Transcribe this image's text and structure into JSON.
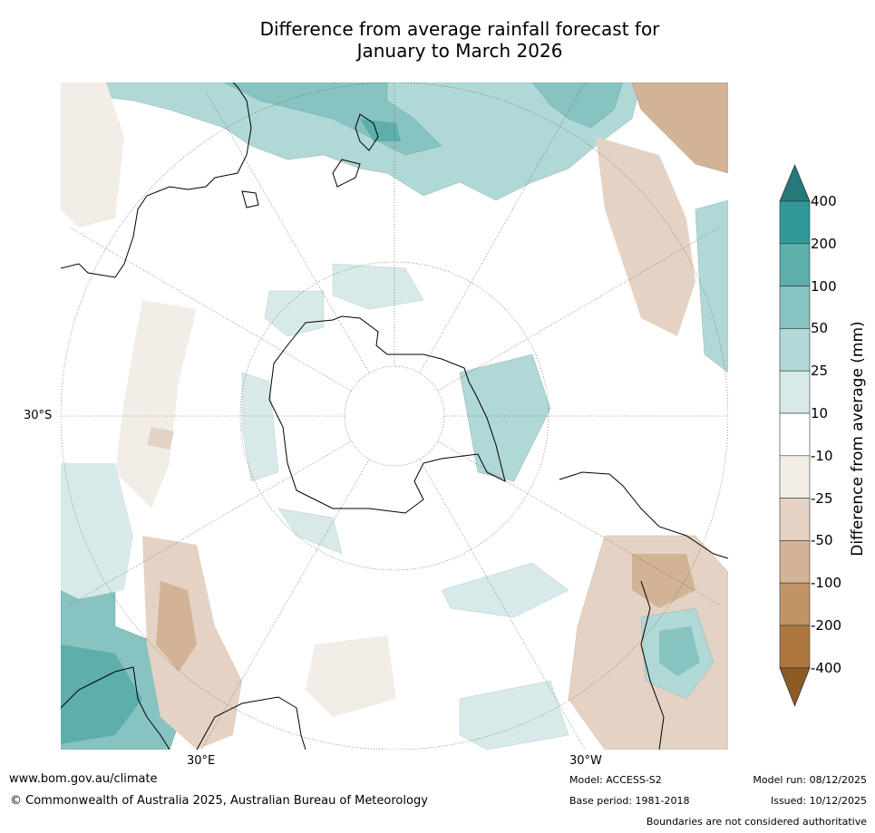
{
  "title": {
    "line1": "Difference from average rainfall forecast for",
    "line2": "January to March 2026"
  },
  "map": {
    "projection": "South polar stereographic",
    "lat_label_30s": "30°S",
    "lon_label_30e": "30°E",
    "lon_label_30w": "30°W"
  },
  "colorbar": {
    "title": "Difference from average (mm)",
    "ticks": [
      "400",
      "200",
      "100",
      "50",
      "25",
      "10",
      "-10",
      "-25",
      "-50",
      "-100",
      "-200",
      "-400"
    ],
    "colors": {
      "above_400": "#257a79",
      "c200_400": "#2f9a98",
      "c100_200": "#5eaeac",
      "c50_100": "#86c3c1",
      "c25_50": "#b0d8d7",
      "c10_25": "#d7eae9",
      "neutral": "#ffffff",
      "n10_25": "#f2ede7",
      "n25_50": "#e4d3c4",
      "n50_100": "#d2b396",
      "n100_200": "#c19467",
      "n200_400": "#ae7740",
      "below_400": "#8e5a24"
    }
  },
  "footer": {
    "url": "www.bom.gov.au/climate",
    "copyright": "© Commonwealth of Australia 2025, Australian Bureau of Meteorology",
    "model": "Model: ACCESS-S2",
    "base_period": "Base period: 1981-2018",
    "model_run": "Model run: 08/12/2025",
    "issued": "Issued: 10/12/2025",
    "disclaimer": "Boundaries are not considered authoritative"
  }
}
